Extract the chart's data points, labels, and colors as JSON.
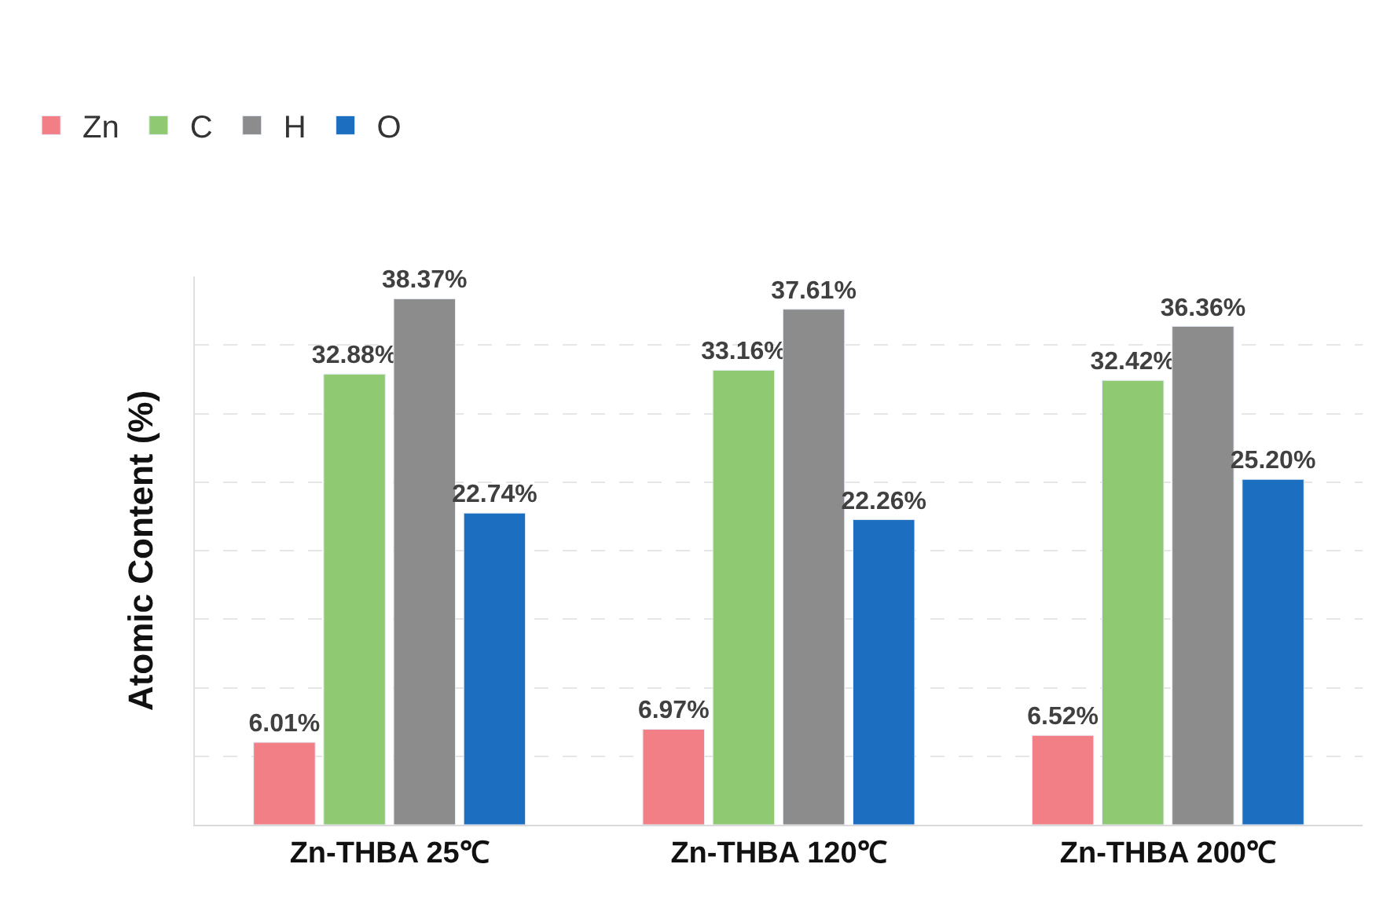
{
  "chart_data": {
    "type": "bar",
    "ylabel": "Atomic Content (%)",
    "categories": [
      "Zn-THBA 25℃",
      "Zn-THBA 120℃",
      "Zn-THBA 200℃"
    ],
    "series": [
      {
        "name": "Zn",
        "color": "#f27f86",
        "values": [
          6.01,
          6.97,
          6.52
        ],
        "value_labels": [
          "6.01%",
          "6.97%",
          "6.52%"
        ]
      },
      {
        "name": "C",
        "color": "#8fca72",
        "values": [
          32.88,
          33.16,
          32.42
        ],
        "value_labels": [
          "32.88%",
          "33.16%",
          "32.42%"
        ]
      },
      {
        "name": "H",
        "color": "#8c8c8c",
        "values": [
          38.37,
          37.61,
          36.36
        ],
        "value_labels": [
          "38.37%",
          "37.61%",
          "36.36%"
        ]
      },
      {
        "name": "O",
        "color": "#1c6fc0",
        "values": [
          22.74,
          22.26,
          25.2
        ],
        "value_labels": [
          "22.74%",
          "22.26%",
          "25.20%"
        ]
      }
    ],
    "ylim": [
      0,
      40
    ],
    "yticks": [
      {
        "value": 0,
        "label": null
      },
      {
        "value": 5,
        "label": null
      },
      {
        "value": 10,
        "label": null
      },
      {
        "value": 15,
        "label": null
      },
      {
        "value": 20,
        "label": null
      },
      {
        "value": 25,
        "label": null
      },
      {
        "value": 30,
        "label": null
      },
      {
        "value": 35,
        "label": null
      }
    ],
    "grid": "y",
    "legend": "top left"
  }
}
